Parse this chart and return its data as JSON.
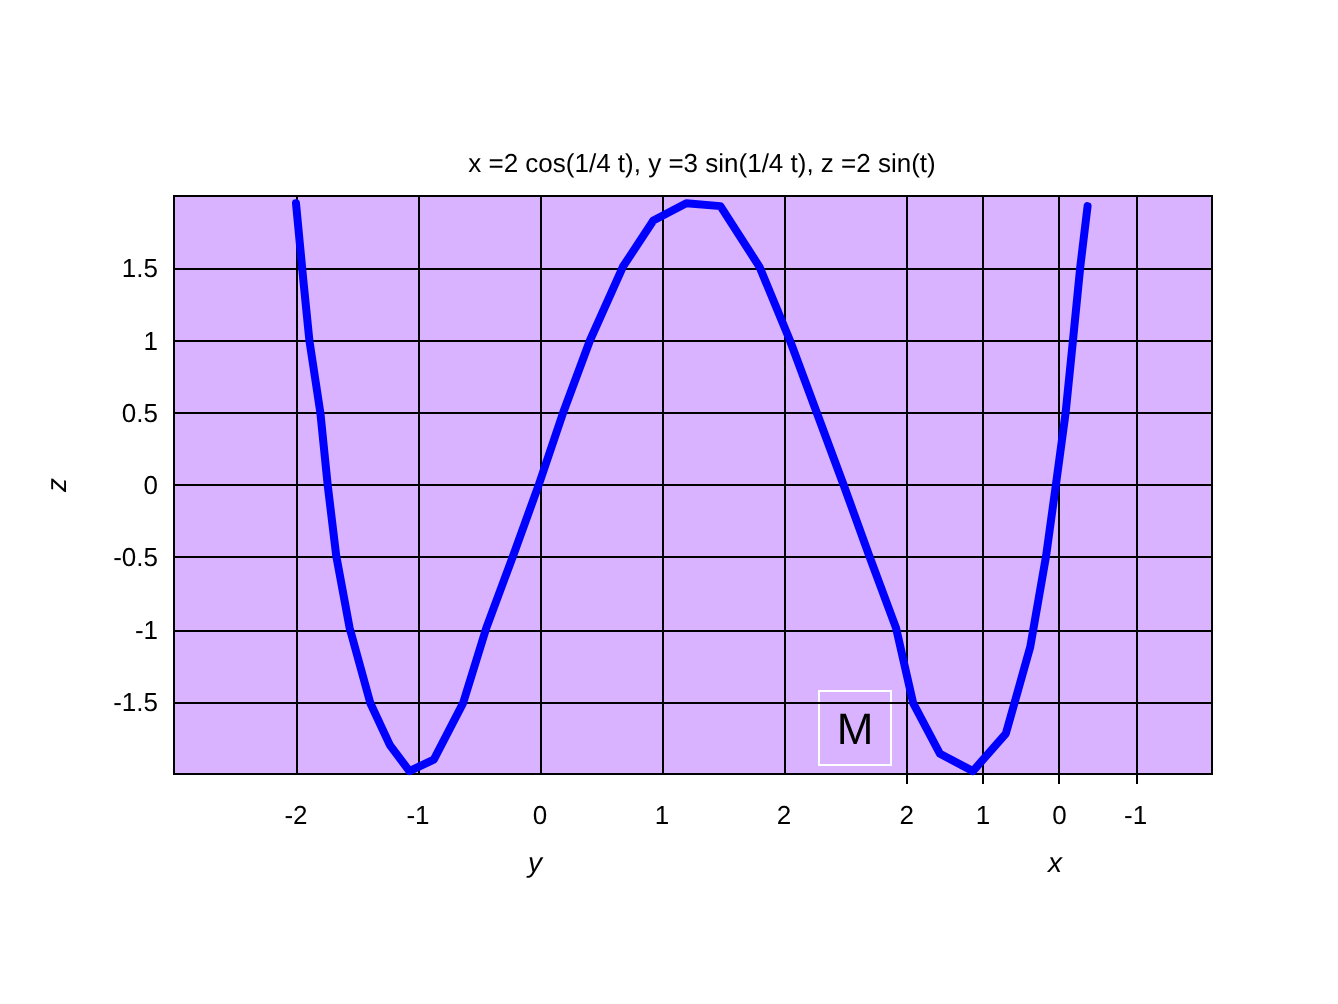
{
  "chart_data": {
    "type": "line",
    "title": "x =2 cos(1/4 t), y =3 sin(1/4 t), z =2 sin(t)",
    "xlabel": "y",
    "ylabel": "z",
    "annotations": [
      "M"
    ],
    "x": [
      -2.0,
      -1.94,
      -1.89,
      -1.8,
      -1.74,
      -1.67,
      -1.56,
      -1.39,
      -1.23,
      -1.07,
      -0.87,
      -0.63,
      -0.44,
      -0.22,
      -0.01,
      0.19,
      0.41,
      0.68,
      0.93,
      1.2,
      1.48,
      1.8,
      2.05,
      2.27,
      2.49,
      2.7,
      2.92,
      3.06,
      3.28,
      3.55,
      3.82,
      4.02,
      4.15,
      4.23,
      4.31,
      4.37,
      4.43,
      4.49
    ],
    "series": [
      {
        "color": "#0000ff",
        "values": [
          1.95,
          1.42,
          1.0,
          0.5,
          0.0,
          -0.49,
          -0.99,
          -1.51,
          -1.8,
          -1.98,
          -1.9,
          -1.51,
          -0.99,
          -0.49,
          0.0,
          0.5,
          1.0,
          1.51,
          1.83,
          1.95,
          1.93,
          1.51,
          1.0,
          0.5,
          0.0,
          -0.49,
          -0.99,
          -1.51,
          -1.86,
          -1.98,
          -1.72,
          -1.12,
          -0.49,
          0.0,
          0.5,
          1.0,
          1.51,
          1.93
        ]
      }
    ],
    "xlim": [
      -3.0,
      5.51
    ],
    "ylim": [
      -2,
      2
    ],
    "xticks": [
      -2,
      -1,
      0,
      1,
      2
    ],
    "x2label": "x",
    "x2lim": [
      11.6,
      -2.0
    ],
    "x2ticks": [
      2,
      1,
      0,
      -1
    ],
    "yticks": [
      -1.5,
      -1,
      -0.5,
      0,
      0.5,
      1,
      1.5
    ],
    "grid": true,
    "marker": "none",
    "line_style": "solid"
  }
}
